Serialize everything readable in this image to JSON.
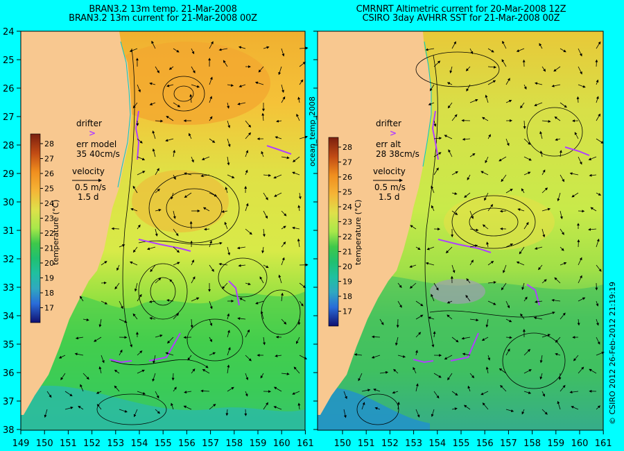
{
  "left_panel": {
    "title_line1": "BRAN3.2 13m temp. 21-Mar-2008",
    "title_line2": "BRAN3.2 13m current for 21-Mar-2008 00Z",
    "legend": {
      "drifter_label": "drifter",
      "drifter_symbol": ">",
      "err_label": "err model",
      "err_value": "35 40cm/s",
      "velocity_label": "velocity",
      "velocity_scale": "0.5 m/s",
      "velocity_duration": "1.5 d"
    }
  },
  "right_panel": {
    "title_line1": "CMRNRT Altimetric current for 20-Mar-2008 12Z",
    "title_line2": "CSIRO 3day AVHRR SST for 21-Mar-2008 00Z",
    "legend": {
      "drifter_label": "drifter",
      "drifter_symbol": ">",
      "err_label": "err alt",
      "err_value": "28 38cm/s",
      "velocity_label": "velocity",
      "velocity_scale": "0.5 m/s",
      "velocity_duration": "1.5 d"
    }
  },
  "colorbar": {
    "ticks": [
      "28",
      "27",
      "26",
      "25",
      "24",
      "23",
      "22",
      "21",
      "20",
      "19",
      "18",
      "17"
    ],
    "label": "temperature (°C)",
    "colors": [
      "#7a1f0f",
      "#c04a14",
      "#f08e1e",
      "#f5b436",
      "#dfe04a",
      "#c8f04a",
      "#3ec84a",
      "#20c070",
      "#20c0a0",
      "#30a8c0",
      "#2a6cd8",
      "#1c30b8",
      "#101070"
    ]
  },
  "y_axis_labels": [
    "24",
    "25",
    "26",
    "27",
    "28",
    "29",
    "30",
    "31",
    "32",
    "33",
    "34",
    "35",
    "36",
    "37",
    "38"
  ],
  "x_axis_labels_left": [
    "149",
    "150",
    "151",
    "152",
    "153",
    "154",
    "155",
    "156",
    "157",
    "158",
    "159",
    "160",
    "161"
  ],
  "x_axis_labels_right": [
    "150",
    "151",
    "152",
    "153",
    "154",
    "155",
    "156",
    "157",
    "158",
    "159",
    "160",
    "161"
  ],
  "side_label": "ocean_temp_2008",
  "credit": "© CSIRO 2012   26-Feb-2012 21:19:19",
  "colors": {
    "background": "#00ffff",
    "land": "#f8c890",
    "drifter": "#b040ff",
    "warm_sst": "#f5b436",
    "cool_sst": "#30d860"
  }
}
